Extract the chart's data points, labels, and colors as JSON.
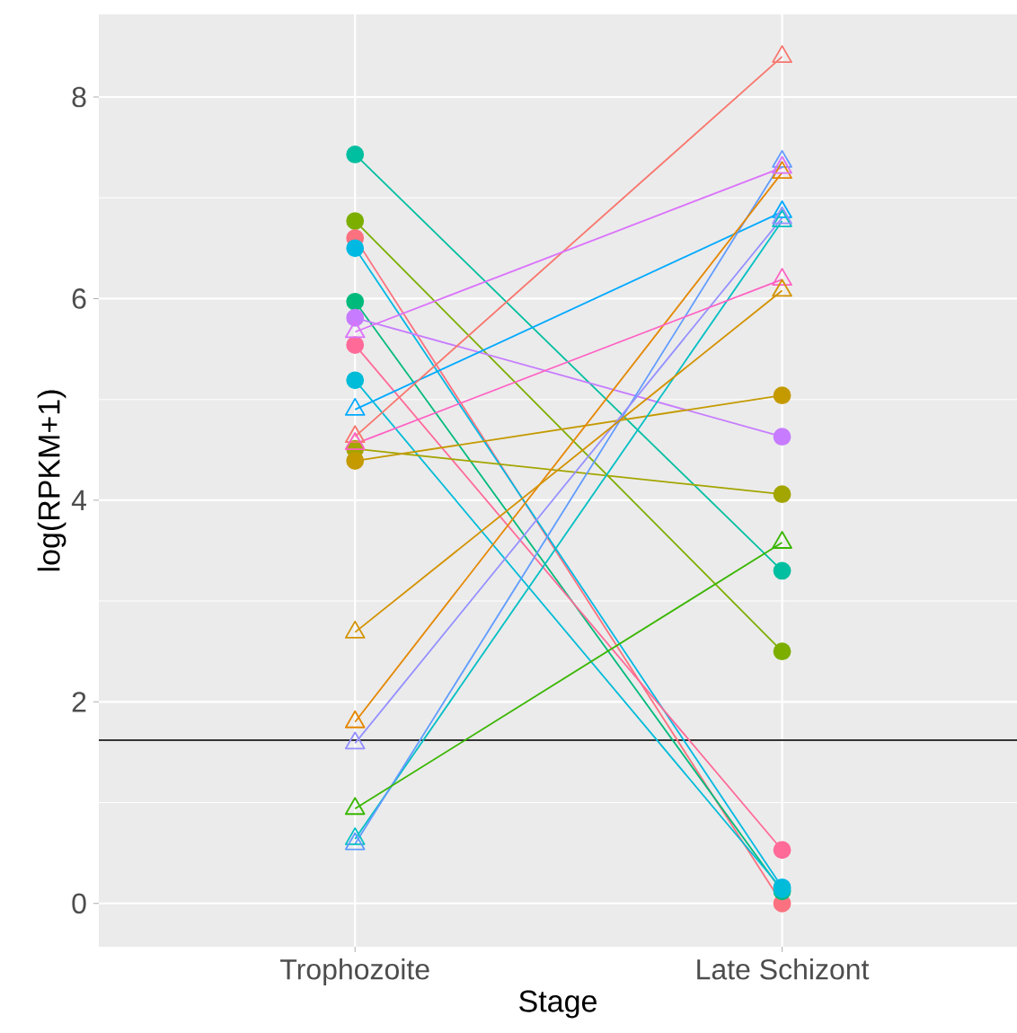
{
  "chart_data": {
    "type": "line",
    "xlabel": "Stage",
    "ylabel": "log(RPKM+1)",
    "categories": [
      "Trophozoite",
      "Late Schizont"
    ],
    "ylim": [
      -0.43,
      8.82
    ],
    "yticks": [
      0,
      2,
      4,
      6,
      8
    ],
    "grid": true,
    "ref_lines": [
      {
        "axis": "y",
        "value": 1.62,
        "color": "#333333"
      }
    ],
    "series": [
      {
        "color": "#00BFA0",
        "marker": "circle",
        "values": [
          7.43,
          3.3
        ]
      },
      {
        "color": "#7CAE00",
        "marker": "circle",
        "values": [
          6.77,
          2.5
        ]
      },
      {
        "color": "#FC717F",
        "marker": "circle",
        "values": [
          6.6,
          0.0
        ]
      },
      {
        "color": "#00B9E3",
        "marker": "circle",
        "values": [
          6.5,
          0.16
        ]
      },
      {
        "color": "#00BA7C",
        "marker": "circle",
        "values": [
          5.97,
          0.12
        ]
      },
      {
        "color": "#C77CFF",
        "marker": "circle",
        "values": [
          5.81,
          4.63
        ]
      },
      {
        "color": "#FF6A98",
        "marker": "circle",
        "values": [
          5.54,
          0.53
        ]
      },
      {
        "color": "#00BCD8",
        "marker": "circle",
        "values": [
          5.19,
          0.14
        ]
      },
      {
        "color": "#A3A500",
        "marker": "circle",
        "values": [
          4.51,
          4.06
        ]
      },
      {
        "color": "#C49A00",
        "marker": "circle",
        "values": [
          4.39,
          5.04
        ]
      },
      {
        "color": "#00A9FF",
        "marker": "triangle",
        "values": [
          4.9,
          6.86
        ]
      },
      {
        "color": "#00BFC4",
        "marker": "triangle",
        "values": [
          0.64,
          6.77
        ]
      },
      {
        "color": "#619CFF",
        "marker": "triangle",
        "values": [
          0.59,
          7.36
        ]
      },
      {
        "color": "#9590FF",
        "marker": "triangle",
        "values": [
          1.59,
          6.8
        ]
      },
      {
        "color": "#E58700",
        "marker": "triangle",
        "values": [
          1.8,
          7.25
        ]
      },
      {
        "color": "#F8766D",
        "marker": "triangle",
        "values": [
          4.63,
          8.4
        ]
      },
      {
        "color": "#FF61C3",
        "marker": "triangle",
        "values": [
          4.56,
          6.19
        ]
      },
      {
        "color": "#D39200",
        "marker": "triangle",
        "values": [
          2.69,
          6.08
        ]
      },
      {
        "color": "#39B600",
        "marker": "triangle",
        "values": [
          0.94,
          3.58
        ]
      },
      {
        "color": "#DB72FB",
        "marker": "triangle",
        "values": [
          5.67,
          7.3
        ]
      }
    ]
  }
}
